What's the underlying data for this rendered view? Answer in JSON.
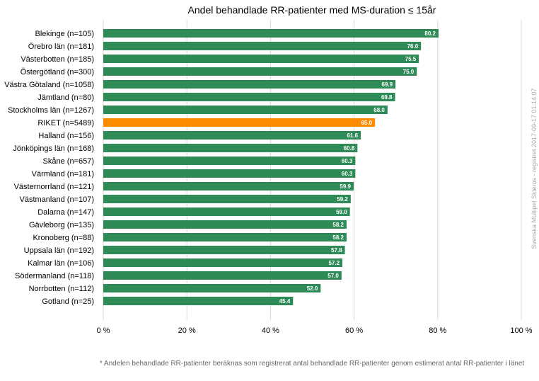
{
  "colors": {
    "bar": "#2e8b57",
    "highlight": "#ff8c00",
    "grid": "#d9d9d9"
  },
  "chart_data": {
    "type": "bar",
    "orientation": "horizontal",
    "title": "Andel behandlade RR-patienter med MS-duration ≤ 15år",
    "categories": [
      "Blekinge (n=105)",
      "Örebro län (n=181)",
      "Västerbotten (n=185)",
      "Östergötland (n=300)",
      "Västra Götaland (n=1058)",
      "Jämtland (n=80)",
      "Stockholms län (n=1267)",
      "RIKET (n=5489)",
      "Halland (n=156)",
      "Jönköpings län (n=168)",
      "Skåne (n=657)",
      "Värmland (n=181)",
      "Västernorrland (n=121)",
      "Västmanland (n=107)",
      "Dalarna (n=147)",
      "Gävleborg (n=135)",
      "Kronoberg (n=88)",
      "Uppsala län (n=192)",
      "Kalmar län (n=106)",
      "Södermanland (n=118)",
      "Norrbotten (n=112)",
      "Gotland (n=25)"
    ],
    "values": [
      80.2,
      76.0,
      75.5,
      75.0,
      69.9,
      69.8,
      68.0,
      65.0,
      61.6,
      60.8,
      60.3,
      60.3,
      59.9,
      59.2,
      59.0,
      58.2,
      58.2,
      57.8,
      57.2,
      57.0,
      52.0,
      45.4
    ],
    "value_labels": [
      "80.2",
      "76.0",
      "75.5",
      "75.0",
      "69.9",
      "69.8",
      "68.0",
      "65.0",
      "61.6",
      "60.8",
      "60.3",
      "60.3",
      "59.9",
      "59.2",
      "59.0",
      "58.2",
      "58.2",
      "57.8",
      "57.2",
      "57.0",
      "52.0",
      "45.4"
    ],
    "highlight_index": 7,
    "xlim": [
      0,
      100
    ],
    "xticks": [
      0,
      20,
      40,
      60,
      80,
      100
    ],
    "xtick_labels": [
      "0 %",
      "20 %",
      "40 %",
      "60 %",
      "80 %",
      "100 %"
    ],
    "xlabel": "",
    "ylabel": "",
    "grid": true
  },
  "footnote": "* Andelen behandlade RR-patienter beräknas som registrerat antal behandlade RR-patienter genom estimerat antal RR-patienter i länet",
  "side_note": "Svenska Multipel Skleros - registret 2017-09-17 01:14:07"
}
